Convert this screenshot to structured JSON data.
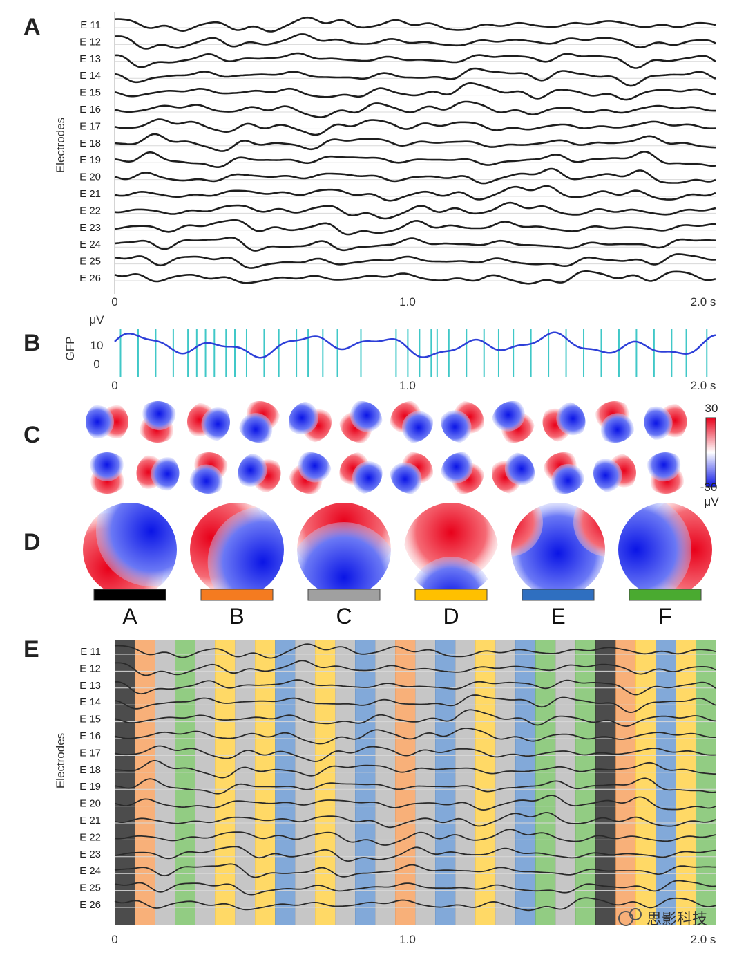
{
  "panels": {
    "a": "A",
    "b": "B",
    "c": "C",
    "d": "D",
    "e": "E"
  },
  "electrodes": [
    "E 11",
    "E 12",
    "E 13",
    "E 14",
    "E 15",
    "E 16",
    "E 17",
    "E 18",
    "E 19",
    "E 20",
    "E 21",
    "E 22",
    "E 23",
    "E 24",
    "E 25",
    "E 26"
  ],
  "axis": {
    "ylabel": "Electrodes",
    "x_ticks": [
      "0",
      "1.0",
      "2.0 s"
    ]
  },
  "gfp": {
    "ylabel": "GFP",
    "unit": "μV",
    "y_ticks": [
      "10",
      "0"
    ],
    "marker_color": "#40c8c8",
    "line_color": "#2d3fd8",
    "marker_times_s": [
      0.02,
      0.08,
      0.14,
      0.2,
      0.25,
      0.28,
      0.31,
      0.34,
      0.38,
      0.41,
      0.45,
      0.51,
      0.56,
      0.62,
      0.66,
      0.71,
      0.76,
      0.84,
      0.96,
      1.0,
      1.04,
      1.08,
      1.1,
      1.14,
      1.2,
      1.26,
      1.31,
      1.36,
      1.42,
      1.48,
      1.54,
      1.6,
      1.66,
      1.72,
      1.78,
      1.84,
      1.9,
      1.95,
      2.02
    ]
  },
  "colorbar": {
    "max_label": "30",
    "min_label": "-30",
    "unit": "μV"
  },
  "microstates": [
    {
      "label": "A",
      "color": "#000000"
    },
    {
      "label": "B",
      "color": "#f47b20"
    },
    {
      "label": "C",
      "color": "#a0a0a0"
    },
    {
      "label": "D",
      "color": "#ffc000"
    },
    {
      "label": "E",
      "color": "#2f6fc0"
    },
    {
      "label": "F",
      "color": "#4aaa30"
    }
  ],
  "segments": [
    "A",
    "B",
    "C",
    "F",
    "C",
    "D",
    "C",
    "D",
    "E",
    "C",
    "D",
    "C",
    "E",
    "C",
    "B",
    "C",
    "E",
    "C",
    "D",
    "C",
    "E",
    "F",
    "C",
    "F",
    "A",
    "B",
    "D",
    "E",
    "D",
    "F"
  ],
  "watermark": "思影科技"
}
